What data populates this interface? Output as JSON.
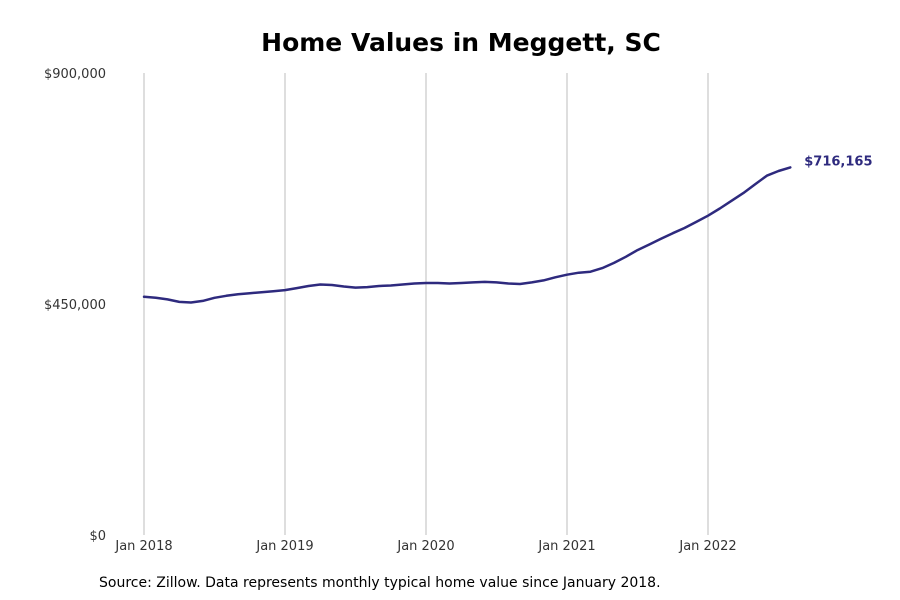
{
  "chart_data": {
    "type": "line",
    "title": "Home Values in Meggett, SC",
    "xlabel": "",
    "ylabel": "",
    "x_start": "2018-01",
    "x_tick_labels": [
      "Jan 2018",
      "Jan 2019",
      "Jan 2020",
      "Jan 2021",
      "Jan 2022"
    ],
    "y_tick_labels": [
      "$0",
      "$450,000",
      "$900,000"
    ],
    "y_ticks": [
      0,
      450000,
      900000
    ],
    "ylim": [
      0,
      900000
    ],
    "grid": "vertical",
    "line_color": "#2e2a7e",
    "series": [
      {
        "end_label": "$716,165",
        "values": [
          [
            "2018-01",
            464000
          ],
          [
            "2018-02",
            462000
          ],
          [
            "2018-03",
            459000
          ],
          [
            "2018-04",
            454000
          ],
          [
            "2018-05",
            453000
          ],
          [
            "2018-06",
            456000
          ],
          [
            "2018-07",
            462000
          ],
          [
            "2018-08",
            466000
          ],
          [
            "2018-09",
            469000
          ],
          [
            "2018-10",
            471000
          ],
          [
            "2018-11",
            473000
          ],
          [
            "2018-12",
            475000
          ],
          [
            "2019-01",
            477000
          ],
          [
            "2019-02",
            481000
          ],
          [
            "2019-03",
            485000
          ],
          [
            "2019-04",
            488000
          ],
          [
            "2019-05",
            487000
          ],
          [
            "2019-06",
            484000
          ],
          [
            "2019-07",
            482000
          ],
          [
            "2019-08",
            483000
          ],
          [
            "2019-09",
            485000
          ],
          [
            "2019-10",
            486000
          ],
          [
            "2019-11",
            488000
          ],
          [
            "2019-12",
            490000
          ],
          [
            "2020-01",
            491000
          ],
          [
            "2020-02",
            491000
          ],
          [
            "2020-03",
            490000
          ],
          [
            "2020-04",
            491000
          ],
          [
            "2020-05",
            492000
          ],
          [
            "2020-06",
            493000
          ],
          [
            "2020-07",
            492000
          ],
          [
            "2020-08",
            490000
          ],
          [
            "2020-09",
            489000
          ],
          [
            "2020-10",
            492000
          ],
          [
            "2020-11",
            496000
          ],
          [
            "2020-12",
            502000
          ],
          [
            "2021-01",
            507000
          ],
          [
            "2021-02",
            511000
          ],
          [
            "2021-03",
            513000
          ],
          [
            "2021-04",
            520000
          ],
          [
            "2021-05",
            530000
          ],
          [
            "2021-06",
            542000
          ],
          [
            "2021-07",
            555000
          ],
          [
            "2021-08",
            566000
          ],
          [
            "2021-09",
            577000
          ],
          [
            "2021-10",
            588000
          ],
          [
            "2021-11",
            598000
          ],
          [
            "2021-12",
            610000
          ],
          [
            "2022-01",
            622000
          ],
          [
            "2022-02",
            636000
          ],
          [
            "2022-03",
            651000
          ],
          [
            "2022-04",
            666000
          ],
          [
            "2022-05",
            683000
          ],
          [
            "2022-06",
            700000
          ],
          [
            "2022-07",
            709000
          ],
          [
            "2022-08",
            716165
          ]
        ]
      }
    ]
  },
  "source_note": "Source: Zillow. Data represents monthly typical home value since January 2018."
}
